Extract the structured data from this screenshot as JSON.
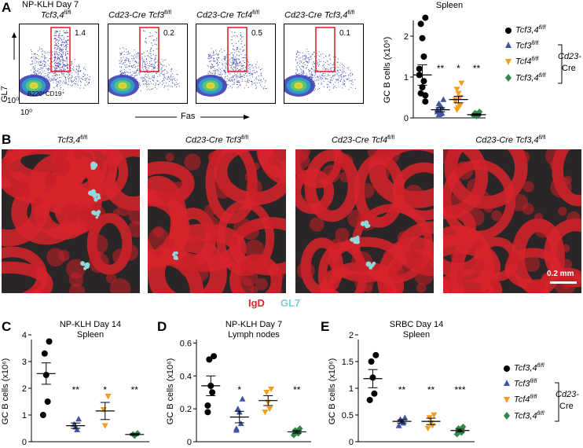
{
  "panel_letters": {
    "a": "A",
    "b": "B",
    "c": "C",
    "d": "D",
    "e": "E"
  },
  "panel_a": {
    "condition": "NP-KLH Day 7",
    "facs_plots": [
      {
        "genotype": "Tcf3,4",
        "genotype_prefix": "",
        "superscript": "fl/fl",
        "percent": "1.4"
      },
      {
        "genotype": "Tcf3",
        "genotype_prefix": "Cd23-Cre ",
        "superscript": "fl/fl",
        "percent": "0.2"
      },
      {
        "genotype": "Tcf4",
        "genotype_prefix": "Cd23-Cre ",
        "superscript": "fl/fl",
        "percent": "0.5"
      },
      {
        "genotype": "Tcf3,4",
        "genotype_prefix": "Cd23-Cre ",
        "superscript": "fl/fl",
        "percent": "0.1"
      }
    ],
    "gate_label": "B220⁺CD19⁺",
    "y_axis": "GL7",
    "x_axis": "Fas",
    "tick_low": "10⁰",
    "tick_low_x": "10⁰"
  },
  "panel_b": {
    "titles": [
      {
        "prefix": "",
        "gene": "Tcf3,4",
        "sup": "fl/fl"
      },
      {
        "prefix": "Cd23-Cre ",
        "gene": "Tcf3",
        "sup": "fl/fl"
      },
      {
        "prefix": "Cd23-Cre ",
        "gene": "Tcf4",
        "sup": "fl/fl"
      },
      {
        "prefix": "Cd23-Cre ",
        "gene": "Tcf3,4",
        "sup": "fl/fl"
      }
    ],
    "scale_bar": "0.2 mm",
    "legend_igd": "IgD",
    "legend_gl7": "GL7",
    "colors": {
      "igd": "#e4252b",
      "gl7": "#7ecfd4"
    }
  },
  "legend": {
    "entries": [
      {
        "label": "Tcf3,4",
        "sup": "fl/fl",
        "color": "#000000",
        "marker": "circle"
      },
      {
        "label": "Tcf3",
        "sup": "fl/fl",
        "color": "#3f55a5",
        "marker": "triangle-up"
      },
      {
        "label": "Tcf4",
        "sup": "fl/fl",
        "color": "#f39c1d",
        "marker": "triangle-down"
      },
      {
        "label": "Tcf3,4",
        "sup": "fl/fl",
        "color": "#2e8a4a",
        "marker": "diamond"
      }
    ],
    "bracket_label_1": "Cd23-",
    "bracket_label_2": "Cre"
  },
  "chart_data": [
    {
      "id": "A_spleen",
      "type": "scatter",
      "title": "Spleen",
      "ylabel": "GC B cells (x10⁶)",
      "ylim": [
        0,
        2.5
      ],
      "yticks": [
        0,
        1,
        2
      ],
      "groups": [
        {
          "name": "Tcf3,4 fl/fl",
          "values": [
            2.45,
            2.3,
            1.95,
            1.5,
            1.2,
            1.05,
            0.9,
            0.75,
            0.6,
            0.55,
            0.4
          ],
          "mean": 1.05,
          "sem": 0.25,
          "sig": ""
        },
        {
          "name": "Cd23-Cre Tcf3 fl/fl",
          "values": [
            0.45,
            0.35,
            0.3,
            0.25,
            0.2,
            0.15,
            0.12,
            0.1,
            0.08
          ],
          "mean": 0.2,
          "sem": 0.05,
          "sig": "**"
        },
        {
          "name": "Cd23-Cre Tcf4 fl/fl",
          "values": [
            0.85,
            0.7,
            0.6,
            0.5,
            0.45,
            0.4,
            0.3,
            0.25,
            0.2
          ],
          "mean": 0.45,
          "sem": 0.08,
          "sig": "*"
        },
        {
          "name": "Cd23-Cre Tcf3,4 fl/fl",
          "values": [
            0.15,
            0.12,
            0.1,
            0.08,
            0.07,
            0.06,
            0.05,
            0.04
          ],
          "mean": 0.08,
          "sem": 0.02,
          "sig": "**"
        }
      ]
    },
    {
      "id": "C",
      "type": "scatter",
      "title": "NP-KLH Day 14",
      "subtitle": "Spleen",
      "ylabel": "GC B cells (x10⁶)",
      "ylim": [
        0,
        4
      ],
      "yticks": [
        0,
        1,
        2,
        3,
        4
      ],
      "groups": [
        {
          "name": "Tcf3,4 fl/fl",
          "values": [
            3.75,
            3.3,
            2.5,
            1.5,
            1.0
          ],
          "mean": 2.55,
          "sem": 0.4,
          "sig": ""
        },
        {
          "name": "Cd23-Cre Tcf3 fl/fl",
          "values": [
            0.85,
            0.65,
            0.55,
            0.45
          ],
          "mean": 0.6,
          "sem": 0.1,
          "sig": "**"
        },
        {
          "name": "Cd23-Cre Tcf4 fl/fl",
          "values": [
            1.7,
            1.2,
            0.6
          ],
          "mean": 1.15,
          "sem": 0.32,
          "sig": "*"
        },
        {
          "name": "Cd23-Cre Tcf3,4 fl/fl",
          "values": [
            0.32,
            0.28,
            0.22
          ],
          "mean": 0.27,
          "sem": 0.03,
          "sig": "**"
        }
      ]
    },
    {
      "id": "D",
      "type": "scatter",
      "title": "NP-KLH Day 7",
      "subtitle": "Lymph nodes",
      "ylabel": "GC B cells (x10⁶)",
      "ylim": [
        0,
        0.65
      ],
      "yticks": [
        0,
        0.2,
        0.4,
        0.6
      ],
      "groups": [
        {
          "name": "Tcf3,4 fl/fl",
          "values": [
            0.52,
            0.5,
            0.34,
            0.3,
            0.22,
            0.18
          ],
          "mean": 0.34,
          "sem": 0.06,
          "sig": ""
        },
        {
          "name": "Cd23-Cre Tcf3 fl/fl",
          "values": [
            0.26,
            0.2,
            0.18,
            0.11,
            0.08,
            0.07
          ],
          "mean": 0.15,
          "sem": 0.035,
          "sig": "*"
        },
        {
          "name": "Cd23-Cre Tcf4 fl/fl",
          "values": [
            0.32,
            0.3,
            0.24,
            0.2,
            0.18
          ],
          "mean": 0.25,
          "sem": 0.03,
          "sig": ""
        },
        {
          "name": "Cd23-Cre Tcf3,4 fl/fl",
          "values": [
            0.08,
            0.07,
            0.06,
            0.05,
            0.04
          ],
          "mean": 0.06,
          "sem": 0.008,
          "sig": "**"
        }
      ]
    },
    {
      "id": "E",
      "type": "scatter",
      "title": "SRBC Day 14",
      "subtitle": "Spleen",
      "ylabel": "GC B cells (x10⁶)",
      "ylim": [
        0,
        2
      ],
      "yticks": [
        0,
        0.5,
        1,
        1.5,
        2
      ],
      "groups": [
        {
          "name": "Tcf3,4 fl/fl",
          "values": [
            1.62,
            1.5,
            1.2,
            0.9,
            0.78
          ],
          "mean": 1.18,
          "sem": 0.17,
          "sig": ""
        },
        {
          "name": "Cd23-Cre Tcf3 fl/fl",
          "values": [
            0.45,
            0.42,
            0.38,
            0.35,
            0.3
          ],
          "mean": 0.38,
          "sem": 0.03,
          "sig": "**"
        },
        {
          "name": "Cd23-Cre Tcf4 fl/fl",
          "values": [
            0.5,
            0.45,
            0.35,
            0.3,
            0.25
          ],
          "mean": 0.38,
          "sem": 0.06,
          "sig": "**"
        },
        {
          "name": "Cd23-Cre Tcf3,4 fl/fl",
          "values": [
            0.28,
            0.25,
            0.2,
            0.17,
            0.14
          ],
          "mean": 0.21,
          "sem": 0.025,
          "sig": "***"
        }
      ]
    }
  ]
}
